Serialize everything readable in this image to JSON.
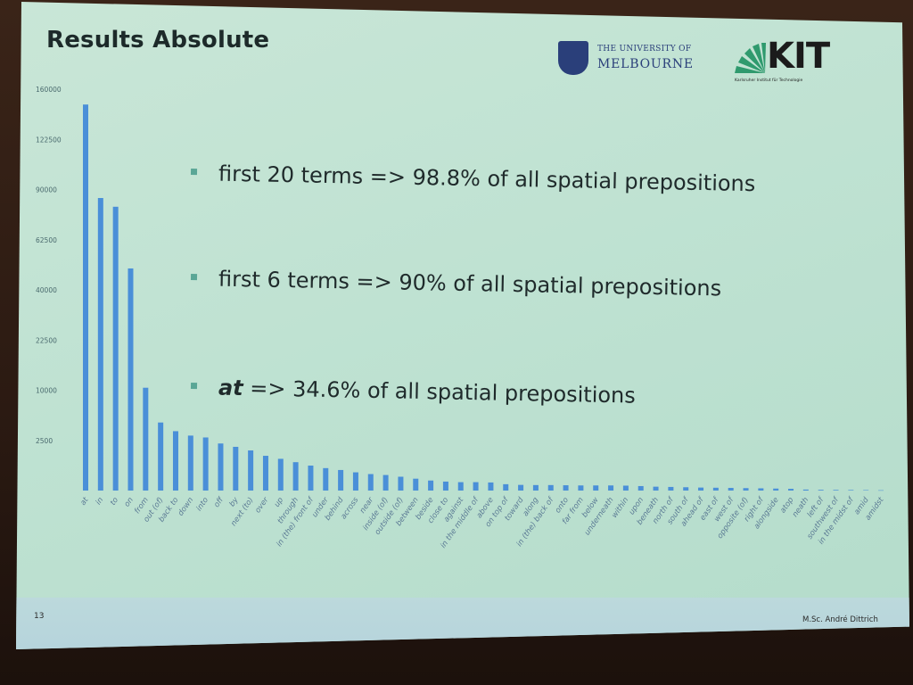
{
  "slide": {
    "title": "Results Absolute",
    "page_number": "13",
    "author": "M.Sc. André Dittrich",
    "logos": {
      "melbourne_line1": "THE UNIVERSITY OF",
      "melbourne_line2": "MELBOURNE",
      "kit_text": "KIT",
      "kit_subtitle": "Karlsruher Institut für Technologie"
    },
    "bullets": [
      {
        "lead": "",
        "text": "first 20 terms => 98.8% of all spatial prepositions"
      },
      {
        "lead": "",
        "text": "first 6 terms => 90% of all spatial prepositions"
      },
      {
        "lead": "at",
        "text": " => 34.6% of all spatial prepositions"
      }
    ]
  },
  "colors": {
    "bar": "#4a8fd8",
    "bullet_marker": "#5aa696"
  },
  "chart_data": {
    "type": "bar",
    "title": "",
    "xlabel": "",
    "ylabel": "",
    "yticks": [
      "160000",
      "122500",
      "90000",
      "62500",
      "40000",
      "22500",
      "10000",
      "2500"
    ],
    "tick_values": [
      160000,
      122500,
      90000,
      62500,
      40000,
      22500,
      10000,
      2500
    ],
    "y_scale": "sqrt",
    "grid": false,
    "legend": "none",
    "categories": [
      "at",
      "in",
      "to",
      "on",
      "from",
      "out (of)",
      "back to",
      "down",
      "into",
      "off",
      "by",
      "next (to)",
      "over",
      "up",
      "through",
      "in (the) front of",
      "under",
      "behind",
      "across",
      "near",
      "inside (of)",
      "outside (of)",
      "between",
      "beside",
      "close to",
      "against",
      "in the middle of",
      "above",
      "on top of",
      "toward",
      "along",
      "in (the) back of",
      "onto",
      "far from",
      "below",
      "underneath",
      "within",
      "upon",
      "beneath",
      "north of",
      "south of",
      "ahead of",
      "east of",
      "west of",
      "opposite (of)",
      "right of",
      "alongside",
      "atop",
      "neath",
      "left of",
      "southwest of",
      "in the midst of",
      "amid",
      "amidst"
    ],
    "values": [
      148000,
      85000,
      80000,
      49000,
      10500,
      4600,
      3500,
      3000,
      2800,
      2200,
      1900,
      1600,
      1200,
      1000,
      800,
      620,
      500,
      420,
      330,
      270,
      240,
      190,
      140,
      100,
      80,
      70,
      70,
      65,
      40,
      32,
      30,
      30,
      28,
      26,
      26,
      26,
      24,
      20,
      15,
      13,
      11,
      9,
      8,
      7,
      6,
      5,
      4,
      3,
      1,
      0.5,
      0.4,
      0.3,
      0.2,
      0.1
    ]
  }
}
